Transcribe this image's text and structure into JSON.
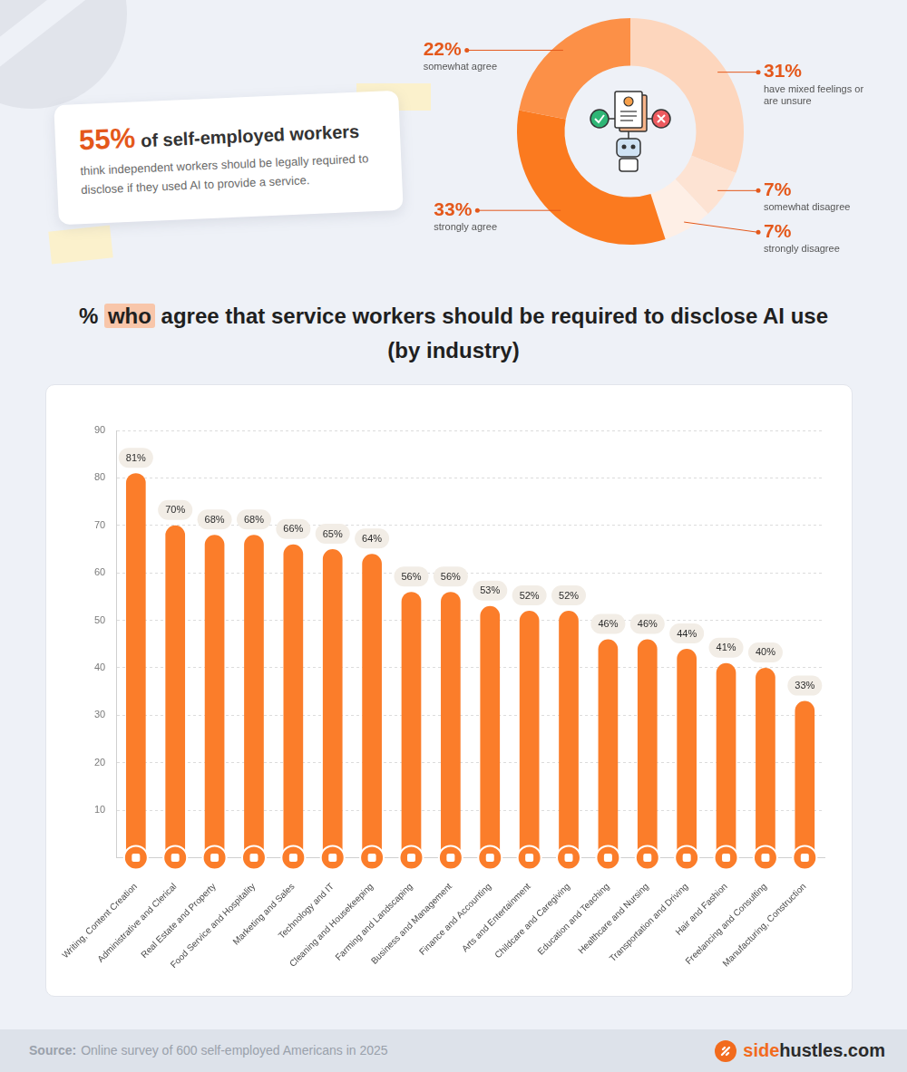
{
  "header": {
    "callout": {
      "value": "55%",
      "headline": "of self-employed workers",
      "text": "think independent workers should be legally required to disclose if they used AI to provide a service."
    }
  },
  "chart_data": [
    {
      "type": "doughnut",
      "categories": [
        "have mixed feelings or are unsure",
        "somewhat disagree",
        "strongly disagree",
        "strongly agree",
        "somewhat agree"
      ],
      "values": [
        31,
        7,
        7,
        33,
        22
      ],
      "value_labels": [
        "31%",
        "7%",
        "7%",
        "33%",
        "22%"
      ],
      "colors": [
        "#fdd6bd",
        "#fde3d3",
        "#feefe6",
        "#fb7a1f",
        "#fc9047"
      ],
      "data_labels": true
    },
    {
      "type": "bar",
      "title": "% who agree that service workers should be required to disclose AI use (by industry)",
      "categories": [
        "Writing, Content Creation",
        "Administrative and Clerical",
        "Real Estate and Property",
        "Food Service and Hospitality",
        "Marketing and Sales",
        "Technology and IT",
        "Cleaning and Housekeeping",
        "Farming and Landscaping",
        "Business and Management",
        "Finance and Accounting",
        "Arts and Entertainment",
        "Childcare and Caregiving",
        "Education and Teaching",
        "Healthcare and Nursing",
        "Transportation and Driving",
        "Hair and Fashion",
        "Freelancing and Consulting",
        "Manufacturing, Construction"
      ],
      "values": [
        81,
        70,
        68,
        68,
        66,
        65,
        64,
        56,
        56,
        53,
        52,
        52,
        46,
        46,
        44,
        41,
        40,
        33
      ],
      "value_labels": [
        "81%",
        "70%",
        "68%",
        "68%",
        "66%",
        "65%",
        "64%",
        "56%",
        "56%",
        "53%",
        "52%",
        "52%",
        "46%",
        "46%",
        "44%",
        "41%",
        "40%",
        "33%"
      ],
      "color": "#fb7d2a",
      "ylim": [
        0,
        90
      ],
      "yticks": [
        10,
        20,
        30,
        40,
        50,
        60,
        70,
        80,
        90
      ],
      "grid": true,
      "data_labels": true
    }
  ],
  "footer": {
    "source_label": "Source:",
    "source": "Online survey of 600 self-employed Americans in 2025",
    "brand": [
      "side",
      "hustles.com"
    ]
  }
}
